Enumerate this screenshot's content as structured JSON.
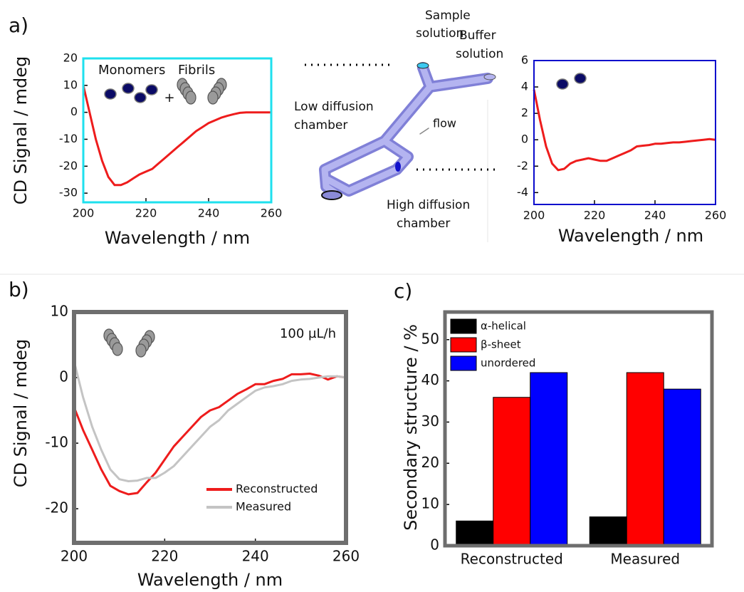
{
  "panel_labels": [
    "a)",
    "b)",
    "c)"
  ],
  "diagram": {
    "labels": [
      [
        "Sample",
        "solution"
      ],
      [
        "Buffer",
        "solution"
      ],
      [
        "Low diffusion",
        "chamber"
      ],
      [
        "flow"
      ],
      [
        "High diffusion",
        "chamber"
      ]
    ]
  },
  "chart_data": [
    {
      "type": "line",
      "frame_color": "#1ee0ee",
      "x": [
        200,
        202,
        204,
        206,
        208,
        210,
        212,
        214,
        216,
        218,
        220,
        222,
        224,
        226,
        228,
        230,
        232,
        234,
        236,
        238,
        240,
        242,
        244,
        246,
        248,
        250,
        252,
        254,
        256,
        258,
        260
      ],
      "series": [
        {
          "color": "#ee1c1c",
          "values": [
            10,
            0,
            -10,
            -18,
            -24,
            -27,
            -27,
            -26,
            -24.5,
            -23,
            -22,
            -21,
            -19,
            -17,
            -15,
            -13,
            -11,
            -9,
            -7,
            -5.5,
            -4,
            -3,
            -2,
            -1.3,
            -0.7,
            -0.2,
            0,
            0,
            0,
            0,
            0
          ]
        }
      ],
      "xlim": [
        200,
        260
      ],
      "xticks": [
        200,
        220,
        240,
        260
      ],
      "ylim": [
        -33.4,
        20
      ],
      "yticks": [
        -30,
        -20,
        -10,
        0,
        10,
        20
      ],
      "x_label": "Wavelength / nm",
      "y_label": "CD Signal / mdeg",
      "annotations": [
        "Monomers",
        "Fibrils",
        "+"
      ]
    },
    {
      "type": "line",
      "frame_color": "#0a0acc",
      "x": [
        200,
        202,
        204,
        206,
        208,
        210,
        212,
        214,
        216,
        218,
        220,
        222,
        224,
        226,
        228,
        230,
        232,
        234,
        236,
        238,
        240,
        242,
        244,
        246,
        248,
        250,
        252,
        254,
        256,
        258,
        260
      ],
      "series": [
        {
          "color": "#ee1c1c",
          "values": [
            3.8,
            1.5,
            -0.5,
            -1.8,
            -2.3,
            -2.2,
            -1.8,
            -1.6,
            -1.5,
            -1.4,
            -1.5,
            -1.6,
            -1.6,
            -1.4,
            -1.2,
            -1.0,
            -0.8,
            -0.5,
            -0.45,
            -0.4,
            -0.3,
            -0.3,
            -0.25,
            -0.2,
            -0.2,
            -0.15,
            -0.1,
            -0.05,
            0,
            0.05,
            0
          ]
        }
      ],
      "xlim": [
        200,
        260
      ],
      "xticks": [
        200,
        220,
        240,
        260
      ],
      "ylim": [
        -4.9,
        6
      ],
      "yticks": [
        -4,
        -2,
        0,
        2,
        4,
        6
      ],
      "x_label": "Wavelength / nm"
    },
    {
      "type": "line",
      "frame_color": "#6e6e6e",
      "legend": "lower right",
      "x": [
        200,
        202,
        204,
        206,
        208,
        210,
        212,
        214,
        216,
        218,
        220,
        222,
        224,
        226,
        228,
        230,
        232,
        234,
        236,
        238,
        240,
        242,
        244,
        246,
        248,
        250,
        252,
        254,
        256,
        258,
        260
      ],
      "series": [
        {
          "name": "Reconstructed",
          "color": "#ee1c1c",
          "values": [
            -4.5,
            -8,
            -11,
            -14,
            -16.5,
            -17.3,
            -17.8,
            -17.6,
            -16,
            -14.5,
            -12.5,
            -10.5,
            -9,
            -7.5,
            -6,
            -5,
            -4.5,
            -3.5,
            -2.5,
            -1.8,
            -1,
            -1,
            -0.5,
            -0.2,
            0.5,
            0.5,
            0.6,
            0.3,
            -0.3,
            0.2,
            0
          ]
        },
        {
          "name": "Measured",
          "color": "#c4c4c4",
          "values": [
            2.5,
            -3,
            -7.5,
            -11,
            -14,
            -15.5,
            -15.8,
            -15.7,
            -15.3,
            -15.3,
            -14.5,
            -13.5,
            -12,
            -10.5,
            -9,
            -7.5,
            -6.5,
            -5,
            -4,
            -3,
            -2,
            -1.5,
            -1.3,
            -1,
            -0.5,
            -0.3,
            -0.2,
            0,
            0.2,
            0.2,
            0
          ]
        }
      ],
      "xlim": [
        200,
        260
      ],
      "xticks": [
        200,
        220,
        240,
        260
      ],
      "ylim": [
        -25.2,
        10
      ],
      "yticks": [
        -20,
        -10,
        0,
        10
      ],
      "x_label": "Wavelength / nm",
      "y_label": "CD Signal / mdeg",
      "annotations": [
        "100 µL/h"
      ]
    },
    {
      "type": "bar",
      "frame_color": "#6e6e6e",
      "legend": "upper left",
      "categories": [
        "Reconstructed",
        "Measured"
      ],
      "series": [
        {
          "name": "α-helical",
          "color": "#000000",
          "values": [
            6,
            7
          ]
        },
        {
          "name": "β-sheet",
          "color": "#ff0000",
          "values": [
            36,
            42
          ]
        },
        {
          "name": "unordered",
          "color": "#0000ff",
          "values": [
            42,
            38
          ]
        }
      ],
      "ylim": [
        0,
        56.7
      ],
      "yticks": [
        0,
        10,
        20,
        30,
        40,
        50
      ],
      "y_label": "Secondary structure / %"
    }
  ]
}
